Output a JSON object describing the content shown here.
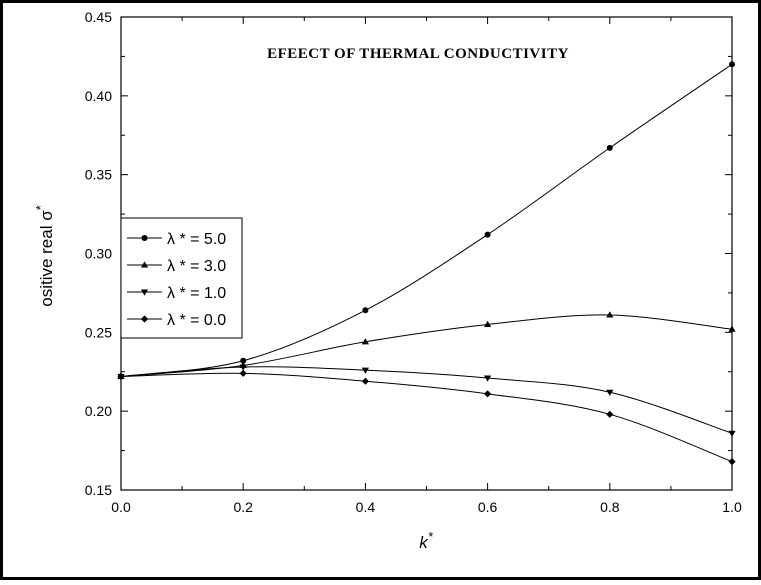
{
  "chart_data": {
    "type": "line",
    "title": "EFEECT OF THERMAL CONDUCTIVITY",
    "xlabel": "k",
    "xlabel_sup": "*",
    "ylabel": "ositive real σ",
    "ylabel_sup": "*",
    "xlim": [
      0.0,
      1.0
    ],
    "ylim": [
      0.15,
      0.45
    ],
    "xticks": [
      "0.0",
      "0.2",
      "0.4",
      "0.6",
      "0.8",
      "1.0"
    ],
    "yticks": [
      "0.15",
      "0.20",
      "0.25",
      "0.30",
      "0.35",
      "0.40",
      "0.45"
    ],
    "x": [
      0.0,
      0.2,
      0.4,
      0.6,
      0.8,
      1.0
    ],
    "grid": false,
    "legend_position": "left",
    "series": [
      {
        "name": "λ * = 5.0",
        "marker": "circle",
        "values": [
          0.222,
          0.232,
          0.264,
          0.312,
          0.367,
          0.42
        ]
      },
      {
        "name": "λ * = 3.0",
        "marker": "triangle-up",
        "values": [
          0.222,
          0.229,
          0.244,
          0.255,
          0.261,
          0.252
        ]
      },
      {
        "name": "λ * = 1.0",
        "marker": "triangle-down",
        "values": [
          0.222,
          0.228,
          0.226,
          0.221,
          0.212,
          0.186
        ]
      },
      {
        "name": "λ * = 0.0",
        "marker": "diamond",
        "values": [
          0.222,
          0.224,
          0.219,
          0.211,
          0.198,
          0.168
        ]
      }
    ]
  }
}
